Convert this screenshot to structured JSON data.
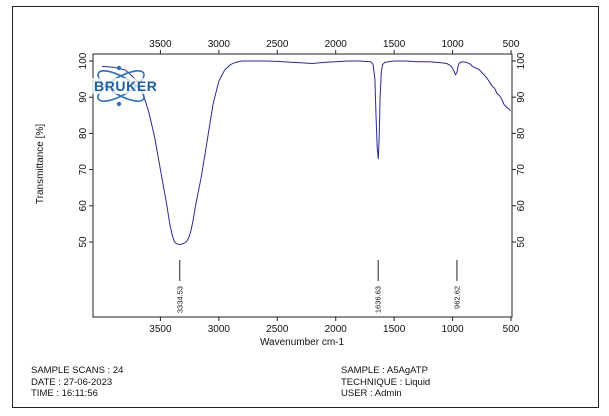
{
  "chart_data": {
    "type": "line",
    "xlabel": "Wavenumber cm-1",
    "ylabel": "Transmittance [%]",
    "xlim": [
      4000,
      500
    ],
    "ylim": [
      20,
      100
    ],
    "x_ticks": [
      3500,
      3000,
      2500,
      2000,
      1500,
      1000,
      500
    ],
    "y_ticks": [
      50,
      60,
      70,
      80,
      90,
      100
    ],
    "series": [
      {
        "color": "#2b2b8f",
        "x": [
          4000,
          3900,
          3800,
          3700,
          3650,
          3600,
          3550,
          3500,
          3450,
          3420,
          3400,
          3380,
          3360,
          3340,
          3320,
          3300,
          3280,
          3260,
          3240,
          3220,
          3200,
          3150,
          3100,
          3050,
          3000,
          2950,
          2900,
          2850,
          2800,
          2700,
          2600,
          2500,
          2400,
          2300,
          2200,
          2100,
          2000,
          1900,
          1800,
          1700,
          1680,
          1665,
          1655,
          1645,
          1636,
          1628,
          1620,
          1610,
          1600,
          1580,
          1550,
          1500,
          1400,
          1300,
          1200,
          1100,
          1050,
          1020,
          1000,
          985,
          975,
          962,
          955,
          945,
          930,
          910,
          880,
          850,
          830,
          800,
          780,
          760,
          740,
          720,
          700,
          680,
          660,
          640,
          620,
          600,
          580,
          560,
          540,
          520,
          505
        ],
        "y": [
          98.5,
          98.3,
          97.5,
          94.5,
          91,
          86,
          79,
          70,
          61,
          55,
          52,
          50,
          49.5,
          49.3,
          49.4,
          49.6,
          50,
          51,
          53,
          56,
          60,
          68,
          78,
          88,
          94.5,
          97.5,
          99,
          99.7,
          100,
          100,
          100,
          99.9,
          99.7,
          99.5,
          99.3,
          99.6,
          99.8,
          100,
          100,
          99.8,
          99,
          95,
          85,
          76,
          73,
          79,
          90,
          97,
          99,
          99.6,
          99.8,
          100,
          100,
          99.8,
          99.8,
          99.5,
          99.3,
          98.8,
          98,
          97,
          96.2,
          96.9,
          98.2,
          99.3,
          99.7,
          99.8,
          99.6,
          99.2,
          98.5,
          98,
          97.8,
          97.2,
          96.5,
          95.8,
          95,
          94,
          93,
          92.5,
          91,
          90.5,
          89.5,
          88,
          87.3,
          86.8,
          86.3
        ]
      }
    ],
    "peak_labels": [
      {
        "x": 3334.53,
        "label": "3334.53"
      },
      {
        "x": 1636.63,
        "label": "1636.63"
      },
      {
        "x": 962.62,
        "label": "962.62"
      }
    ]
  },
  "logo": {
    "text": "BRUKER",
    "color": "#1f5fa0"
  },
  "footer": {
    "left": [
      "SAMPLE SCANS : 24",
      "DATE : 27-06-2023",
      "TIME : 16:11:56"
    ],
    "right": [
      "SAMPLE : A5AgATP",
      "TECHNIQUE : Liquid",
      "USER : Admin"
    ]
  }
}
